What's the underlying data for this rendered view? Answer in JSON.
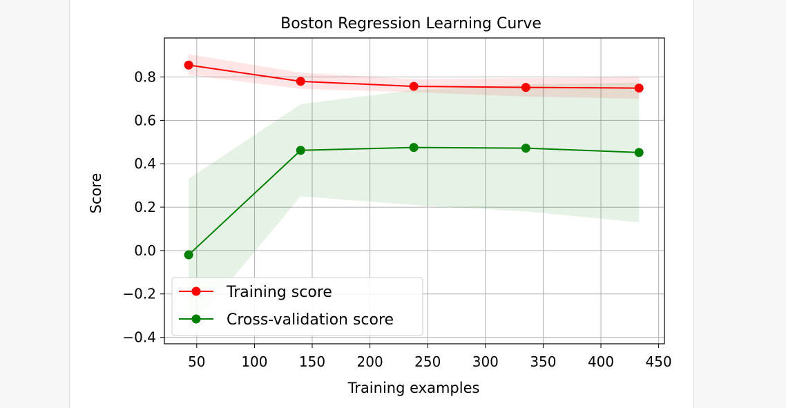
{
  "chart_data": {
    "type": "line",
    "title": "Boston Regression Learning Curve",
    "xlabel": "Training examples",
    "ylabel": "Score",
    "xlim": [
      22,
      455
    ],
    "ylim": [
      -0.43,
      0.98
    ],
    "xticks": [
      50,
      100,
      150,
      200,
      250,
      300,
      350,
      400,
      450
    ],
    "yticks": [
      -0.4,
      -0.2,
      0.0,
      0.2,
      0.4,
      0.6,
      0.8
    ],
    "ytick_labels": [
      "−0.4",
      "−0.2",
      "0.0",
      "0.2",
      "0.4",
      "0.6",
      "0.8"
    ],
    "grid": true,
    "legend_position": "lower-left",
    "x": [
      43,
      140,
      238,
      335,
      433
    ],
    "series": [
      {
        "name": "Training score",
        "color": "#ff0000",
        "values": [
          0.855,
          0.78,
          0.757,
          0.752,
          0.749
        ],
        "band_lower": [
          0.81,
          0.745,
          0.73,
          0.71,
          0.7
        ],
        "band_upper": [
          0.905,
          0.82,
          0.79,
          0.795,
          0.8
        ]
      },
      {
        "name": "Cross-validation score",
        "color": "#008000",
        "values": [
          -0.02,
          0.462,
          0.475,
          0.472,
          0.452
        ],
        "band_lower": [
          -0.37,
          0.25,
          0.21,
          0.18,
          0.13
        ],
        "band_upper": [
          0.33,
          0.675,
          0.74,
          0.765,
          0.775
        ]
      }
    ]
  }
}
